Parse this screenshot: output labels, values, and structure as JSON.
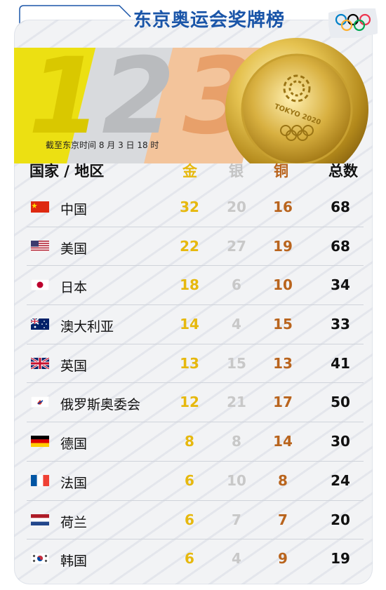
{
  "title": "东京奥运会奖牌榜",
  "big_numbers": [
    "1",
    "2",
    "3"
  ],
  "as_of": "截至东京时间 8 月 3 日 18 时",
  "medal_text": "TOKYO 2020",
  "headers": {
    "country": "国家 / 地区",
    "gold": "金",
    "silver": "银",
    "bronze": "铜",
    "total": "总数"
  },
  "rows": [
    {
      "country": "中国",
      "flag": "china-flag-icon",
      "gold": "32",
      "silver": "20",
      "bronze": "16",
      "total": "68"
    },
    {
      "country": "美国",
      "flag": "usa-flag-icon",
      "gold": "22",
      "silver": "27",
      "bronze": "19",
      "total": "68"
    },
    {
      "country": "日本",
      "flag": "japan-flag-icon",
      "gold": "18",
      "silver": "6",
      "bronze": "10",
      "total": "34"
    },
    {
      "country": "澳大利亚",
      "flag": "australia-flag-icon",
      "gold": "14",
      "silver": "4",
      "bronze": "15",
      "total": "33"
    },
    {
      "country": "英国",
      "flag": "uk-flag-icon",
      "gold": "13",
      "silver": "15",
      "bronze": "13",
      "total": "41"
    },
    {
      "country": "俄罗斯奥委会",
      "flag": "roc-flag-icon",
      "gold": "12",
      "silver": "21",
      "bronze": "17",
      "total": "50"
    },
    {
      "country": "德国",
      "flag": "germany-flag-icon",
      "gold": "8",
      "silver": "8",
      "bronze": "14",
      "total": "30"
    },
    {
      "country": "法国",
      "flag": "france-flag-icon",
      "gold": "6",
      "silver": "10",
      "bronze": "8",
      "total": "24"
    },
    {
      "country": "荷兰",
      "flag": "netherlands-flag-icon",
      "gold": "6",
      "silver": "7",
      "bronze": "7",
      "total": "20"
    },
    {
      "country": "韩国",
      "flag": "korea-flag-icon",
      "gold": "6",
      "silver": "4",
      "bronze": "9",
      "total": "19"
    }
  ],
  "colors": {
    "title": "#1a55a8",
    "gold": "#e6b80e",
    "silver": "#c8c8c8",
    "bronze": "#b9641d"
  }
}
